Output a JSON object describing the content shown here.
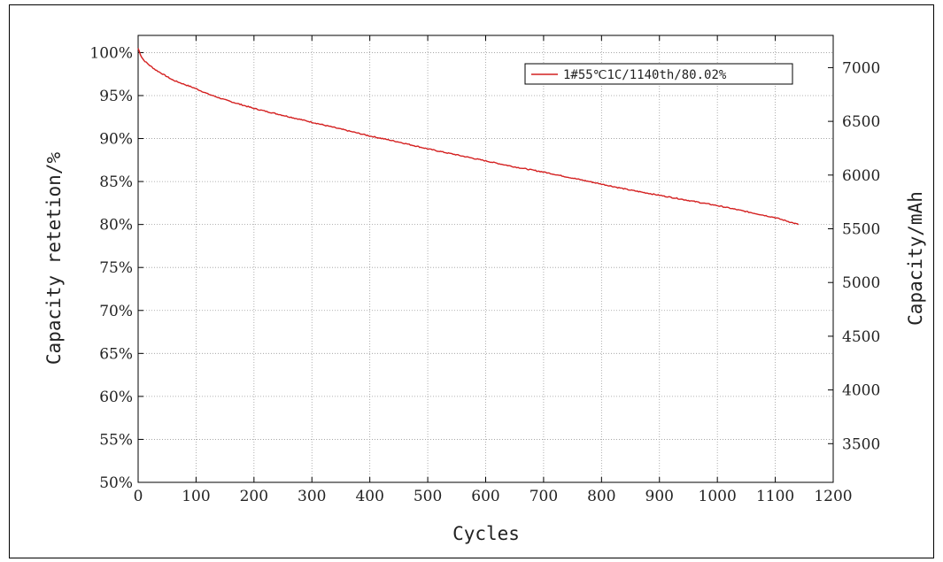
{
  "chart_data": {
    "type": "line",
    "xlabel": "Cycles",
    "ylabel": "Capacity retetion/%",
    "y2label": "Capacity/mAh",
    "xlim": [
      0,
      1200
    ],
    "ylim": [
      50,
      102
    ],
    "y2lim": [
      3140,
      7300
    ],
    "xticks": [
      "0",
      "100",
      "200",
      "300",
      "400",
      "500",
      "600",
      "700",
      "800",
      "900",
      "1000",
      "1100",
      "1200"
    ],
    "yticks": [
      "50%",
      "55%",
      "60%",
      "65%",
      "70%",
      "75%",
      "80%",
      "85%",
      "90%",
      "95%",
      "100%"
    ],
    "y2ticks": [
      "3500",
      "4000",
      "4500",
      "5000",
      "5500",
      "6000",
      "6500",
      "7000"
    ],
    "grid": true,
    "legend_position": "top-right",
    "color": "#d42020",
    "series": [
      {
        "name": "1#55℃1C/1140th/80.02%",
        "x": [
          0,
          5,
          10,
          20,
          30,
          40,
          50,
          60,
          80,
          100,
          120,
          150,
          200,
          250,
          300,
          350,
          400,
          450,
          500,
          550,
          600,
          650,
          700,
          750,
          800,
          850,
          900,
          950,
          1000,
          1050,
          1100,
          1140
        ],
        "y": [
          100.5,
          99.6,
          99.1,
          98.5,
          98.0,
          97.6,
          97.2,
          96.8,
          96.3,
          95.8,
          95.2,
          94.5,
          93.5,
          92.7,
          91.9,
          91.1,
          90.3,
          89.6,
          88.8,
          88.1,
          87.4,
          86.7,
          86.1,
          85.4,
          84.7,
          84.0,
          83.4,
          82.8,
          82.2,
          81.5,
          80.8,
          80.0
        ]
      }
    ]
  }
}
